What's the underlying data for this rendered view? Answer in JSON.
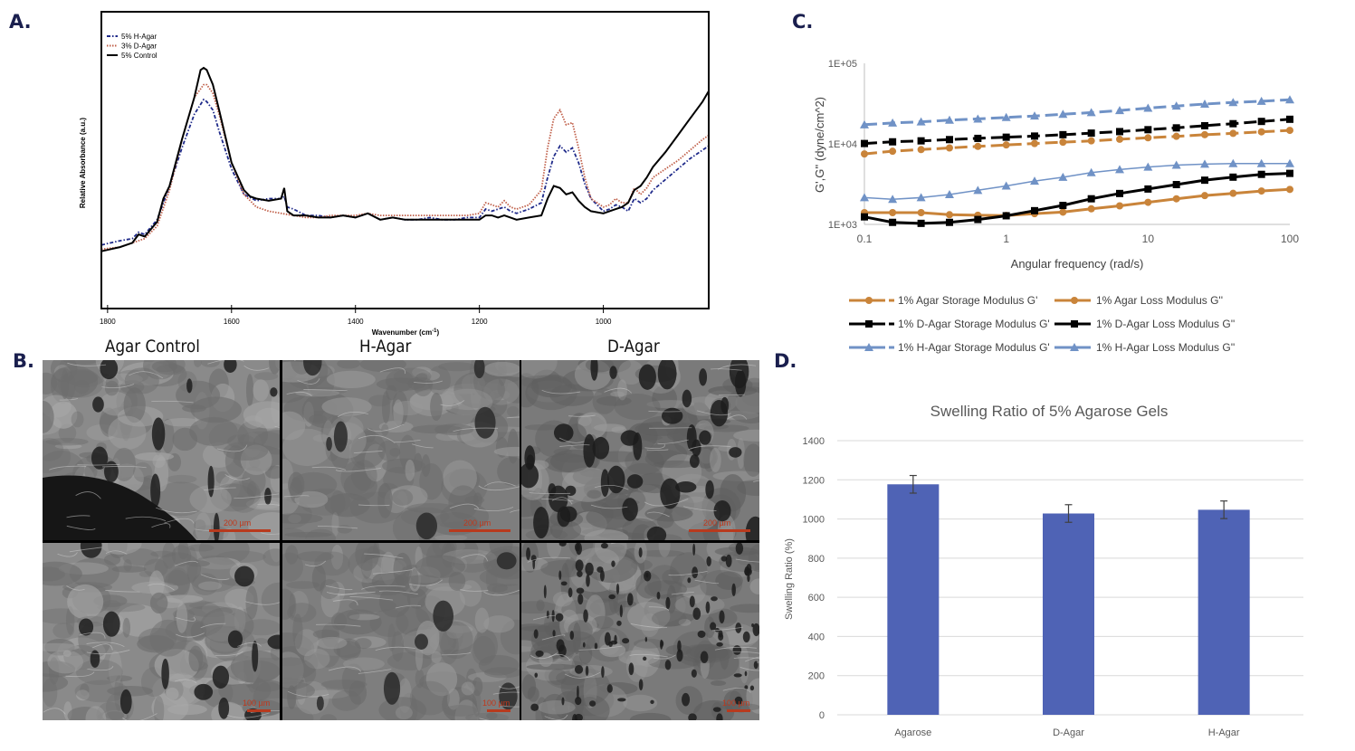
{
  "panels": {
    "a_label": "A.",
    "b_label": "B.",
    "c_label": "C.",
    "d_label": "D."
  },
  "sem": {
    "columns": [
      "Agar Control",
      "H-Agar",
      "D-Agar"
    ],
    "scale_top": "200 µm",
    "scale_bottom": "100 µm"
  },
  "chart_data": [
    {
      "id": "ftir",
      "type": "line",
      "title": "",
      "xlabel": "Wavenumber (cm-1)",
      "xlabel_main": "Wavenumber (cm",
      "xlabel_sup": "-1",
      "xlabel_end": ")",
      "ylabel": "Relative Absorbance (a.u.)",
      "xlim": [
        1810,
        830
      ],
      "x_reversed": true,
      "ylim": [
        0,
        1
      ],
      "x_ticks": [
        1800,
        1600,
        1400,
        1200,
        1000
      ],
      "legend_position": "top-left",
      "series": [
        {
          "name": "5% H-Agar",
          "color": "#1f2a8a",
          "dash": "dashdot",
          "x": [
            1810,
            1780,
            1760,
            1750,
            1740,
            1720,
            1700,
            1680,
            1660,
            1645,
            1640,
            1630,
            1620,
            1600,
            1580,
            1560,
            1540,
            1520,
            1515,
            1510,
            1500,
            1480,
            1460,
            1440,
            1420,
            1400,
            1380,
            1360,
            1340,
            1320,
            1300,
            1280,
            1260,
            1240,
            1220,
            1200,
            1190,
            1180,
            1170,
            1160,
            1150,
            1140,
            1120,
            1100,
            1090,
            1080,
            1070,
            1060,
            1050,
            1040,
            1030,
            1020,
            1000,
            990,
            980,
            970,
            960,
            950,
            940,
            930,
            920,
            900,
            880,
            860,
            840,
            830
          ],
          "y": [
            0.16,
            0.18,
            0.19,
            0.22,
            0.21,
            0.28,
            0.44,
            0.62,
            0.78,
            0.85,
            0.84,
            0.8,
            0.7,
            0.52,
            0.4,
            0.37,
            0.38,
            0.38,
            0.39,
            0.34,
            0.33,
            0.3,
            0.3,
            0.29,
            0.3,
            0.29,
            0.31,
            0.28,
            0.29,
            0.28,
            0.28,
            0.29,
            0.28,
            0.28,
            0.29,
            0.29,
            0.33,
            0.32,
            0.33,
            0.34,
            0.32,
            0.31,
            0.33,
            0.36,
            0.48,
            0.58,
            0.63,
            0.6,
            0.62,
            0.55,
            0.45,
            0.38,
            0.32,
            0.33,
            0.35,
            0.34,
            0.32,
            0.38,
            0.36,
            0.38,
            0.42,
            0.47,
            0.52,
            0.57,
            0.61,
            0.63
          ]
        },
        {
          "name": "3% D-Agar",
          "color": "#c0604a",
          "dash": "dotted",
          "x": [
            1810,
            1780,
            1760,
            1740,
            1720,
            1700,
            1680,
            1660,
            1645,
            1640,
            1630,
            1620,
            1600,
            1580,
            1560,
            1540,
            1520,
            1500,
            1480,
            1460,
            1440,
            1420,
            1400,
            1380,
            1360,
            1340,
            1320,
            1300,
            1280,
            1260,
            1240,
            1220,
            1200,
            1190,
            1180,
            1170,
            1160,
            1150,
            1140,
            1120,
            1100,
            1090,
            1080,
            1070,
            1060,
            1050,
            1040,
            1030,
            1020,
            1000,
            990,
            980,
            970,
            960,
            950,
            940,
            930,
            920,
            900,
            880,
            860,
            840,
            830
          ],
          "y": [
            0.14,
            0.15,
            0.17,
            0.19,
            0.25,
            0.42,
            0.66,
            0.86,
            0.92,
            0.92,
            0.88,
            0.78,
            0.55,
            0.4,
            0.34,
            0.32,
            0.31,
            0.3,
            0.29,
            0.29,
            0.3,
            0.3,
            0.3,
            0.31,
            0.3,
            0.3,
            0.3,
            0.3,
            0.3,
            0.3,
            0.3,
            0.3,
            0.31,
            0.36,
            0.35,
            0.34,
            0.37,
            0.34,
            0.33,
            0.35,
            0.42,
            0.62,
            0.76,
            0.8,
            0.73,
            0.74,
            0.62,
            0.48,
            0.38,
            0.34,
            0.35,
            0.38,
            0.36,
            0.36,
            0.43,
            0.4,
            0.43,
            0.48,
            0.52,
            0.56,
            0.61,
            0.66,
            0.68
          ]
        },
        {
          "name": "5% Control",
          "color": "#000000",
          "dash": "solid",
          "x": [
            1810,
            1780,
            1760,
            1750,
            1740,
            1720,
            1710,
            1700,
            1680,
            1660,
            1650,
            1645,
            1640,
            1630,
            1620,
            1600,
            1580,
            1570,
            1560,
            1540,
            1520,
            1515,
            1510,
            1500,
            1480,
            1460,
            1440,
            1420,
            1400,
            1380,
            1360,
            1340,
            1320,
            1300,
            1280,
            1260,
            1240,
            1220,
            1200,
            1190,
            1180,
            1170,
            1160,
            1150,
            1140,
            1120,
            1100,
            1090,
            1080,
            1070,
            1060,
            1050,
            1040,
            1030,
            1020,
            1000,
            990,
            980,
            970,
            960,
            950,
            940,
            930,
            920,
            900,
            880,
            860,
            840,
            830
          ],
          "y": [
            0.13,
            0.15,
            0.17,
            0.21,
            0.2,
            0.27,
            0.38,
            0.44,
            0.66,
            0.86,
            0.99,
            1.0,
            0.99,
            0.92,
            0.8,
            0.55,
            0.42,
            0.39,
            0.38,
            0.37,
            0.38,
            0.43,
            0.32,
            0.3,
            0.3,
            0.29,
            0.29,
            0.3,
            0.29,
            0.31,
            0.28,
            0.29,
            0.28,
            0.28,
            0.28,
            0.28,
            0.28,
            0.28,
            0.28,
            0.3,
            0.3,
            0.29,
            0.3,
            0.29,
            0.28,
            0.29,
            0.3,
            0.38,
            0.44,
            0.43,
            0.4,
            0.41,
            0.37,
            0.34,
            0.32,
            0.31,
            0.32,
            0.33,
            0.34,
            0.36,
            0.42,
            0.44,
            0.48,
            0.53,
            0.6,
            0.68,
            0.76,
            0.84,
            0.89
          ]
        }
      ]
    },
    {
      "id": "rheology",
      "type": "line",
      "title": "",
      "xlabel": "Angular frequency (rad/s)",
      "ylabel": "G',G'' (dyne/cm^2)",
      "x_scale": "log",
      "y_scale": "log",
      "xlim": [
        0.1,
        100
      ],
      "ylim": [
        1000,
        100000
      ],
      "x_ticks": [
        0.1,
        1,
        10,
        100
      ],
      "x_tick_labels": [
        "0.1",
        "1",
        "10",
        "100"
      ],
      "y_ticks": [
        1000,
        10000,
        100000
      ],
      "y_tick_labels": [
        "1E+03",
        "1E+04",
        "1E+05"
      ],
      "legend_position": "bottom",
      "x": [
        0.1,
        0.158,
        0.251,
        0.398,
        0.631,
        1,
        1.585,
        2.512,
        3.981,
        6.31,
        10,
        15.85,
        25.12,
        39.81,
        63.1,
        100
      ],
      "series": [
        {
          "name": "1% Agar Storage Modulus G'",
          "color": "#c9843a",
          "marker": "circle",
          "dash": "dashed",
          "values": [
            7500,
            8100,
            8500,
            8900,
            9300,
            9700,
            10100,
            10500,
            10900,
            11400,
            11900,
            12400,
            13000,
            13500,
            14100,
            14700
          ]
        },
        {
          "name": "1% Agar Loss Modulus G''",
          "color": "#c9843a",
          "marker": "circle",
          "dash": "solid",
          "values": [
            1400,
            1400,
            1400,
            1320,
            1300,
            1290,
            1360,
            1420,
            1560,
            1700,
            1880,
            2080,
            2280,
            2430,
            2600,
            2720
          ]
        },
        {
          "name": "1% D-Agar Storage Modulus G'",
          "color": "#000000",
          "marker": "square",
          "dash": "dashed",
          "values": [
            10100,
            10600,
            10900,
            11300,
            11700,
            12100,
            12500,
            13000,
            13600,
            14200,
            15000,
            15800,
            16800,
            17800,
            19000,
            20200
          ]
        },
        {
          "name": "1% D-Agar Loss Modulus G''",
          "color": "#000000",
          "marker": "square",
          "dash": "solid",
          "values": [
            1240,
            1060,
            1030,
            1060,
            1150,
            1280,
            1480,
            1720,
            2080,
            2420,
            2750,
            3120,
            3540,
            3860,
            4180,
            4300
          ]
        },
        {
          "name": "1% H-Agar Storage Modulus G'",
          "color": "#7092c6",
          "marker": "triangle",
          "dash": "dashed",
          "values": [
            17300,
            18200,
            18800,
            19700,
            20400,
            21300,
            22200,
            23300,
            24500,
            26000,
            27800,
            29500,
            31200,
            32700,
            33800,
            35300
          ]
        },
        {
          "name": "1% H-Agar Loss Modulus G''",
          "color": "#7092c6",
          "marker": "triangle",
          "dash": "solid",
          "values": [
            2150,
            2050,
            2150,
            2350,
            2650,
            3000,
            3450,
            3850,
            4400,
            4800,
            5150,
            5450,
            5600,
            5700,
            5700,
            5700
          ]
        }
      ]
    },
    {
      "id": "swelling",
      "type": "bar",
      "title": "Swelling Ratio of 5% Agarose Gels",
      "xlabel": "",
      "ylabel": "Swelling Ratio (%)",
      "categories": [
        "Agarose",
        "D-Agar",
        "H-Agar"
      ],
      "values": [
        1177,
        1028,
        1047
      ],
      "errors": [
        45,
        45,
        45
      ],
      "ylim": [
        0,
        1400
      ],
      "y_ticks": [
        0,
        200,
        400,
        600,
        800,
        1000,
        1200,
        1400
      ],
      "grid": true,
      "bar_color": "#4f63b5"
    }
  ]
}
